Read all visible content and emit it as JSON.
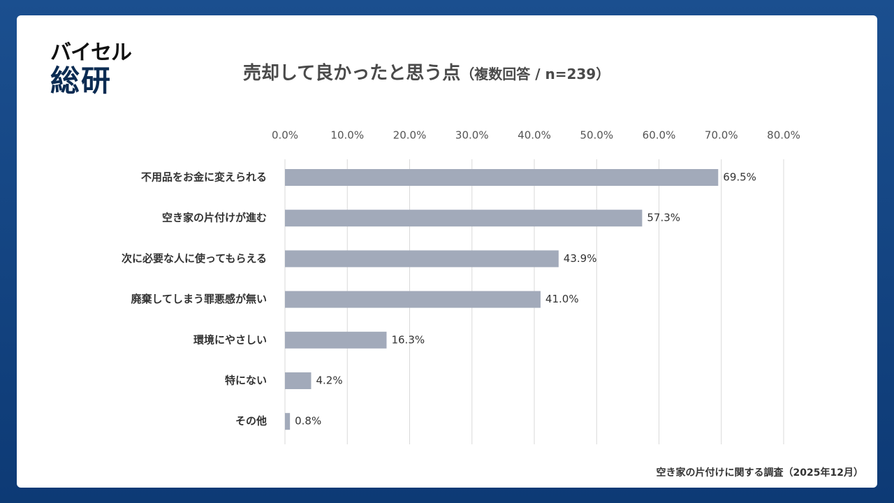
{
  "logo": {
    "line1": "バイセル",
    "line2": "総研"
  },
  "title": {
    "main": "売却して良かったと思う点",
    "sub": "（複数回答 / n=239）"
  },
  "footer": {
    "source": "空き家の片付けに関する調査（2025年12月）"
  },
  "colors": {
    "bar": "#a2aaba",
    "grid": "#d9d9d9",
    "frame": "#1b4f8f"
  },
  "chart_data": {
    "type": "bar",
    "orientation": "horizontal",
    "title": "売却して良かったと思う点（複数回答 / n=239）",
    "categories": [
      "不用品をお金に変えられる",
      "空き家の片付けが進む",
      "次に必要な人に使ってもらえる",
      "廃棄してしまう罪悪感が無い",
      "環境にやさしい",
      "特にない",
      "その他"
    ],
    "values": [
      69.5,
      57.3,
      43.9,
      41.0,
      16.3,
      4.2,
      0.8
    ],
    "value_labels": [
      "69.5%",
      "57.3%",
      "43.9%",
      "41.0%",
      "16.3%",
      "4.2%",
      "0.8%"
    ],
    "xlim": [
      0,
      80
    ],
    "xticks": [
      0,
      10,
      20,
      30,
      40,
      50,
      60,
      70,
      80
    ],
    "xtick_labels": [
      "0.0%",
      "10.0%",
      "20.0%",
      "30.0%",
      "40.0%",
      "50.0%",
      "60.0%",
      "70.0%",
      "80.0%"
    ],
    "xaxis_position": "top",
    "grid": true
  }
}
